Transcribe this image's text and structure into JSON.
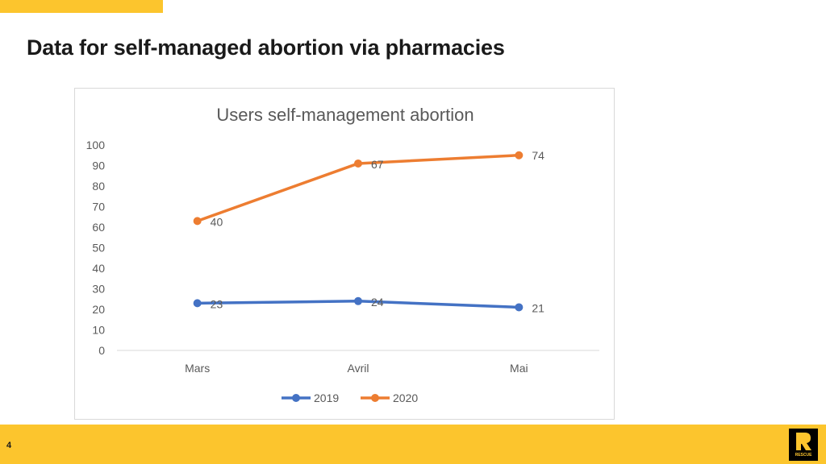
{
  "slide": {
    "title": "Data for self-managed abortion via pharmacies",
    "page_number": "4",
    "logo_text": "RESCUE"
  },
  "colors": {
    "accent_yellow": "#FCC52D",
    "series_2019": "#4472C4",
    "series_2020": "#ED7D31",
    "text": "#595959",
    "axis": "#d9d9d9"
  },
  "chart_data": {
    "type": "line",
    "title": "Users self-management abortion",
    "categories": [
      "Mars",
      "Avril",
      "Mai"
    ],
    "series": [
      {
        "name": "2019",
        "values": [
          23,
          24,
          21
        ],
        "labels": [
          "23",
          "24",
          "21"
        ]
      },
      {
        "name": "2020",
        "values": [
          63,
          91,
          95
        ],
        "labels": [
          "40",
          "67",
          "74"
        ]
      }
    ],
    "ylim": [
      0,
      100
    ],
    "yticks": [
      0,
      10,
      20,
      30,
      40,
      50,
      60,
      70,
      80,
      90,
      100
    ],
    "grid": false,
    "legend_position": "bottom"
  }
}
